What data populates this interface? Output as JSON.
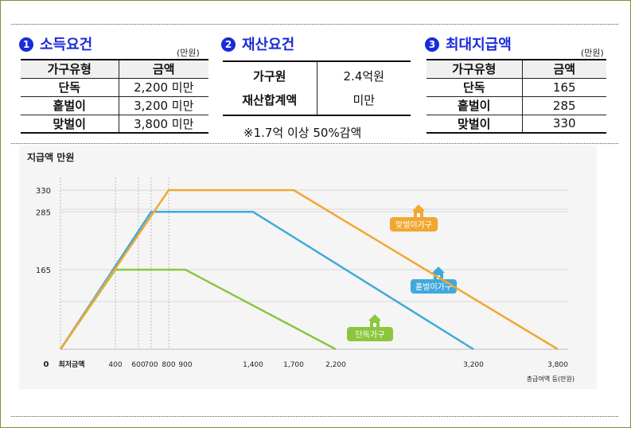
{
  "sections": {
    "income": {
      "num": "1",
      "title": "소득요건",
      "unit": "(만원)",
      "headers": [
        "가구유형",
        "금액"
      ],
      "rows": [
        [
          "단독",
          "2,200 미만"
        ],
        [
          "홑벌이",
          "3,200 미만"
        ],
        [
          "맞벌이",
          "3,800 미만"
        ]
      ]
    },
    "assets": {
      "num": "2",
      "title": "재산요건",
      "label_line1": "가구원",
      "label_line2": "재산합계액",
      "value_line1": "2.4억원",
      "value_line2": "미만",
      "note": "※1.7억  이상  50%감액"
    },
    "max": {
      "num": "3",
      "title": "최대지급액",
      "unit": "(만원)",
      "headers": [
        "가구유형",
        "금액"
      ],
      "rows": [
        [
          "단독",
          "165"
        ],
        [
          "홑벌이",
          "285"
        ],
        [
          "맞벌이",
          "330"
        ]
      ]
    }
  },
  "chart_data": {
    "type": "line",
    "title": "지급액 만원",
    "xlabel": "총급여액 등(만원)",
    "x_origin_label": "0",
    "x_min_label": "최저금액",
    "x_ticks": [
      400,
      600,
      700,
      800,
      900,
      1400,
      1700,
      2200,
      3200,
      3800
    ],
    "x_tick_labels": [
      "400",
      "600",
      "700",
      "800",
      "900",
      "1,400",
      "1,700",
      "2,200",
      "3,200",
      "3,800"
    ],
    "y_ticks": [
      165,
      285,
      330
    ],
    "y_tick_labels": [
      "165",
      "285",
      "330"
    ],
    "series": [
      {
        "name": "단독가구",
        "color": "#8cc63f",
        "points": [
          [
            0,
            0
          ],
          [
            400,
            165
          ],
          [
            900,
            165
          ],
          [
            2200,
            0
          ]
        ]
      },
      {
        "name": "홑벌이가구",
        "color": "#3fa9dc",
        "points": [
          [
            0,
            0
          ],
          [
            700,
            285
          ],
          [
            1400,
            285
          ],
          [
            3200,
            0
          ]
        ]
      },
      {
        "name": "맞벌이가구",
        "color": "#f0a830",
        "points": [
          [
            0,
            0
          ],
          [
            800,
            330
          ],
          [
            1700,
            330
          ],
          [
            3800,
            0
          ]
        ]
      }
    ]
  }
}
